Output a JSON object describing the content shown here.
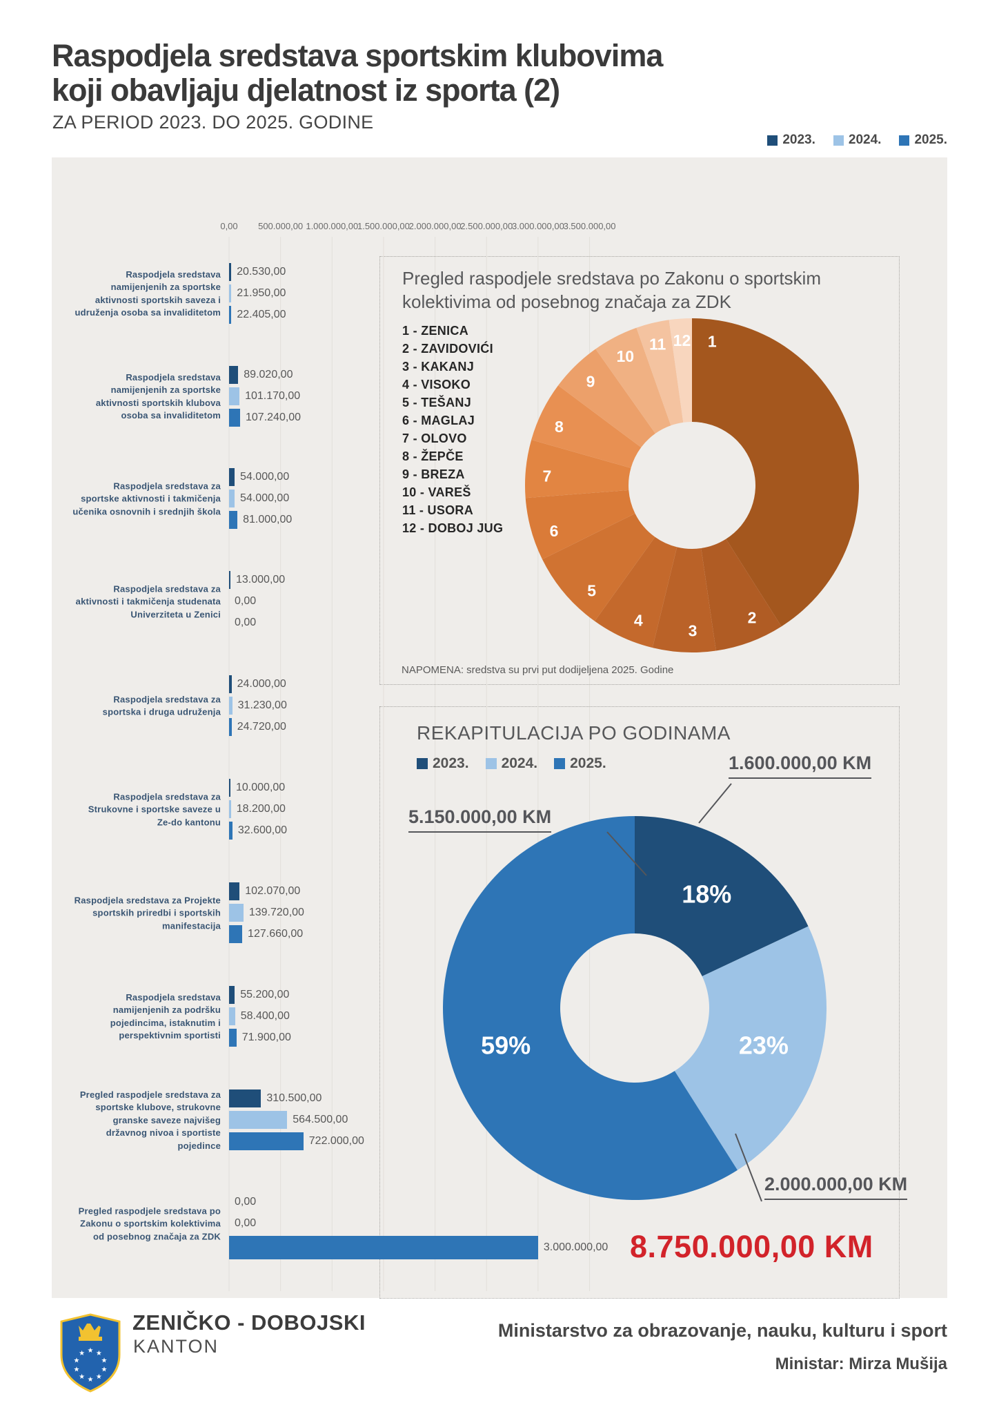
{
  "page": {
    "title_line1": "Raspodjela sredstava sportskim klubovima",
    "title_line2": "koji obavljaju djelatnost iz sporta (2)",
    "subtitle": "ZA PERIOD 2023. DO 2025. GODINE"
  },
  "colors": {
    "y2023": "#1F4E79",
    "y2024": "#9DC3E6",
    "y2025": "#2E75B6",
    "total_red": "#D2232A",
    "panel_bg": "#EFEDEA",
    "grid": "#e2dfda"
  },
  "years_legend": [
    {
      "label": "2023.",
      "color": "#1F4E79"
    },
    {
      "label": "2024.",
      "color": "#9DC3E6"
    },
    {
      "label": "2025.",
      "color": "#2E75B6"
    }
  ],
  "chart_data": [
    {
      "type": "bar",
      "orientation": "horizontal",
      "unit": "KM",
      "grid": true,
      "legend_position": "top-right",
      "axis_ticks": [
        "0,00",
        "500.000,00",
        "1.000.000,00",
        "1.500.000,00",
        "2.000.000,00",
        "2.500.000,00",
        "3.000.000,00",
        "3.500.000,00"
      ],
      "axis_tick_values": [
        0,
        500000,
        1000000,
        1500000,
        2000000,
        2500000,
        3000000,
        3500000
      ],
      "axis_max": 3500000,
      "categories": [
        "Raspodjela sredstava namijenjenih za sportske aktivnosti sportskih saveza i udruženja osoba sa invaliditetom",
        "Raspodjela sredstava namijenjenih za sportske aktivnosti sportskih klubova osoba sa invaliditetom",
        "Raspodjela sredstava za sportske aktivnosti i takmičenja učenika osnovnih i srednjih škola",
        "Raspodjela sredstava za aktivnosti i takmičenja studenata Univerziteta u Zenici",
        "Raspodjela sredstava za sportska i druga udruženja",
        "Raspodjela sredstava za Strukovne i sportske saveze u Ze-do kantonu",
        "Raspodjela sredstava za Projekte sportskih priredbi i sportskih manifestacija",
        "Raspodjela sredstava namijenjenih za podršku pojedincima, istaknutim i perspektivnim sportisti",
        "Pregled raspodjele sredstava za sportske klubove, strukovne granske saveze najvišeg državnog nivoa i sportiste pojedince",
        "Pregled raspodjele sredstava po Zakonu o sportskim kolektivima od posebnog značaja za ZDK"
      ],
      "series": [
        {
          "name": "2023.",
          "color": "#1F4E79",
          "values": [
            20530,
            89020,
            54000,
            13000,
            24000,
            10000,
            102070,
            55200,
            310500,
            0
          ]
        },
        {
          "name": "2024.",
          "color": "#9DC3E6",
          "values": [
            21950,
            101170,
            54000,
            0,
            31230,
            18200,
            139720,
            58400,
            564500,
            0
          ]
        },
        {
          "name": "2025.",
          "color": "#2E75B6",
          "values": [
            22405,
            107240,
            81000,
            0,
            24720,
            32600,
            127660,
            71900,
            722000,
            3000000
          ]
        }
      ],
      "value_labels": [
        [
          "20.530,00",
          "21.950,00",
          "22.405,00"
        ],
        [
          "89.020,00",
          "101.170,00",
          "107.240,00"
        ],
        [
          "54.000,00",
          "54.000,00",
          "81.000,00"
        ],
        [
          "13.000,00",
          "0,00",
          "0,00"
        ],
        [
          "24.000,00",
          "31.230,00",
          "24.720,00"
        ],
        [
          "10.000,00",
          "18.200,00",
          "32.600,00"
        ],
        [
          "102.070,00",
          "139.720,00",
          "127.660,00"
        ],
        [
          "55.200,00",
          "58.400,00",
          "71.900,00"
        ],
        [
          "310.500,00",
          "564.500,00",
          "722.000,00"
        ],
        [
          "0,00",
          "0,00",
          "3.000.000,00"
        ]
      ]
    },
    {
      "type": "donut",
      "title": "Pregled raspodjele sredstava po Zakonu o sportskim kolektivima od posebnog značaja za ZDK",
      "note": "NAPOMENA: sredstva su prvi put dodijeljena 2025. Godine",
      "legend_position": "left",
      "segments": [
        {
          "num": "1",
          "name": "ZENICA",
          "pct": 41.0,
          "color": "#A4571E"
        },
        {
          "num": "2",
          "name": "ZAVIDOVIĆI",
          "pct": 6.7,
          "color": "#B05C24"
        },
        {
          "num": "3",
          "name": "KAKANJ",
          "pct": 6.1,
          "color": "#BA6228"
        },
        {
          "num": "4",
          "name": "VISOKO",
          "pct": 6.1,
          "color": "#C4692C"
        },
        {
          "num": "5",
          "name": "TEŠANJ",
          "pct": 7.8,
          "color": "#D07332"
        },
        {
          "num": "6",
          "name": "MAGLAJ",
          "pct": 6.1,
          "color": "#DA7B38"
        },
        {
          "num": "7",
          "name": "OLOVO",
          "pct": 5.6,
          "color": "#E28542"
        },
        {
          "num": "8",
          "name": "ŽEPČE",
          "pct": 5.8,
          "color": "#E89052"
        },
        {
          "num": "9",
          "name": "BREZA",
          "pct": 5.0,
          "color": "#ECA06A"
        },
        {
          "num": "10",
          "name": "VAREŠ",
          "pct": 4.4,
          "color": "#F0B183"
        },
        {
          "num": "11",
          "name": "USORA",
          "pct": 3.2,
          "color": "#F4C3A0"
        },
        {
          "num": "12",
          "name": "DOBOJ JUG",
          "pct": 2.2,
          "color": "#F8D6BE"
        }
      ]
    },
    {
      "type": "donut",
      "title": "REKAPITULACIJA PO GODINAMA",
      "segments": [
        {
          "name": "2023.",
          "pct": 18,
          "label": "18%",
          "amount": "1.600.000,00 KM",
          "color": "#1F4E79"
        },
        {
          "name": "2024.",
          "pct": 23,
          "label": "23%",
          "amount": "2.000.000,00 KM",
          "color": "#9DC3E6"
        },
        {
          "name": "2025.",
          "pct": 59,
          "label": "59%",
          "amount": "5.150.000,00 KM",
          "color": "#2E75B6"
        }
      ],
      "total": "8.750.000,00 KM"
    }
  ],
  "footer": {
    "org_name_line1": "ZENIČKO - DOBOJSKI",
    "org_name_line2": "KANTON",
    "ministry": "Ministarstvo za obrazovanje, nauku, kulturu i sport",
    "minister": "Ministar: Mirza Mušija"
  }
}
